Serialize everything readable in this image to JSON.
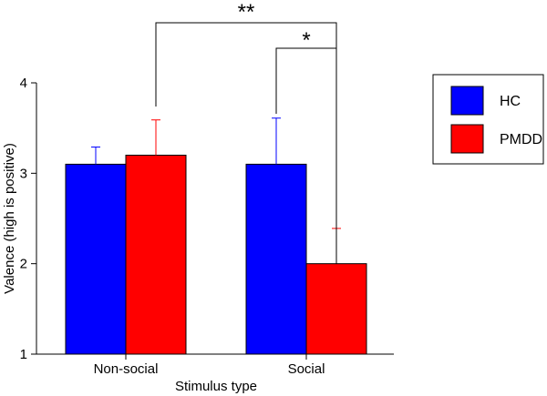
{
  "chart_data": {
    "type": "bar",
    "title": "",
    "xlabel": "Stimulus type",
    "ylabel": "Valence (high is positive)",
    "ylim": [
      1,
      4
    ],
    "yticks": [
      1,
      2,
      3,
      4
    ],
    "categories": [
      "Non-social",
      "Social"
    ],
    "series": [
      {
        "name": "HC",
        "color": "#0000ff",
        "values": [
          3.1,
          3.1
        ],
        "errors": [
          0.19,
          0.51
        ]
      },
      {
        "name": "PMDD",
        "color": "#ff0000",
        "values": [
          3.2,
          2.0
        ],
        "errors": [
          0.39,
          0.39
        ]
      }
    ],
    "legend": {
      "placement": "right",
      "entries": [
        "HC",
        "PMDD"
      ]
    },
    "significance": [
      {
        "label": "**",
        "from": "Non-social PMDD",
        "to": "Social PMDD"
      },
      {
        "label": "*",
        "from": "Social HC",
        "to": "Social PMDD"
      }
    ],
    "grid": false
  }
}
